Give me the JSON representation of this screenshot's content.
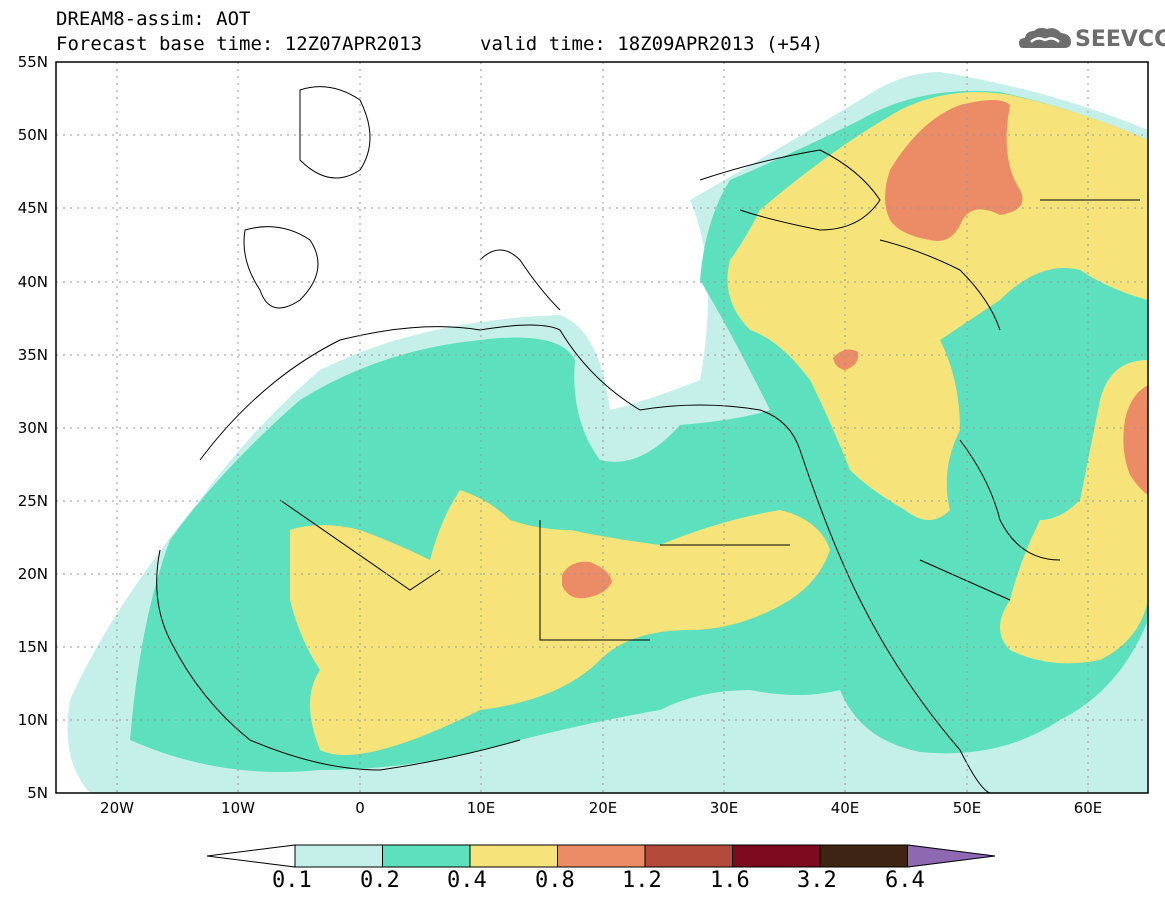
{
  "title": {
    "line1": "DREAM8-assim: AOT",
    "line2": "Forecast base time: 12Z07APR2013",
    "line2b": "valid time: 18Z09APR2013 (+54)"
  },
  "logo": {
    "text": "SEEVCCC",
    "icon": "cloud-icon"
  },
  "axes": {
    "lat_labels": [
      "55N",
      "50N",
      "45N",
      "40N",
      "35N",
      "30N",
      "25N",
      "20N",
      "15N",
      "10N",
      "5N"
    ],
    "lon_labels": [
      "20W",
      "10W",
      "0",
      "10E",
      "20E",
      "30E",
      "40E",
      "50E",
      "60E"
    ],
    "lat_range": [
      5,
      55
    ],
    "lon_range": [
      -25,
      65
    ],
    "grid": true
  },
  "colorbar": {
    "colors": [
      "#c5f0ea",
      "#5de0bd",
      "#f6e37a",
      "#ec8c66",
      "#b34a3a",
      "#7d0a1e",
      "#3e2412",
      "#8c69b0"
    ],
    "labels": [
      "0.1",
      "0.2",
      "0.4",
      "0.8",
      "1.2",
      "1.6",
      "3.2",
      "6.4"
    ]
  },
  "legend_colors": {
    "level_0_1": "#c5f0ea",
    "level_0_2": "#5de0bd",
    "level_0_4": "#f6e37a",
    "level_0_8": "#ec8c66"
  }
}
